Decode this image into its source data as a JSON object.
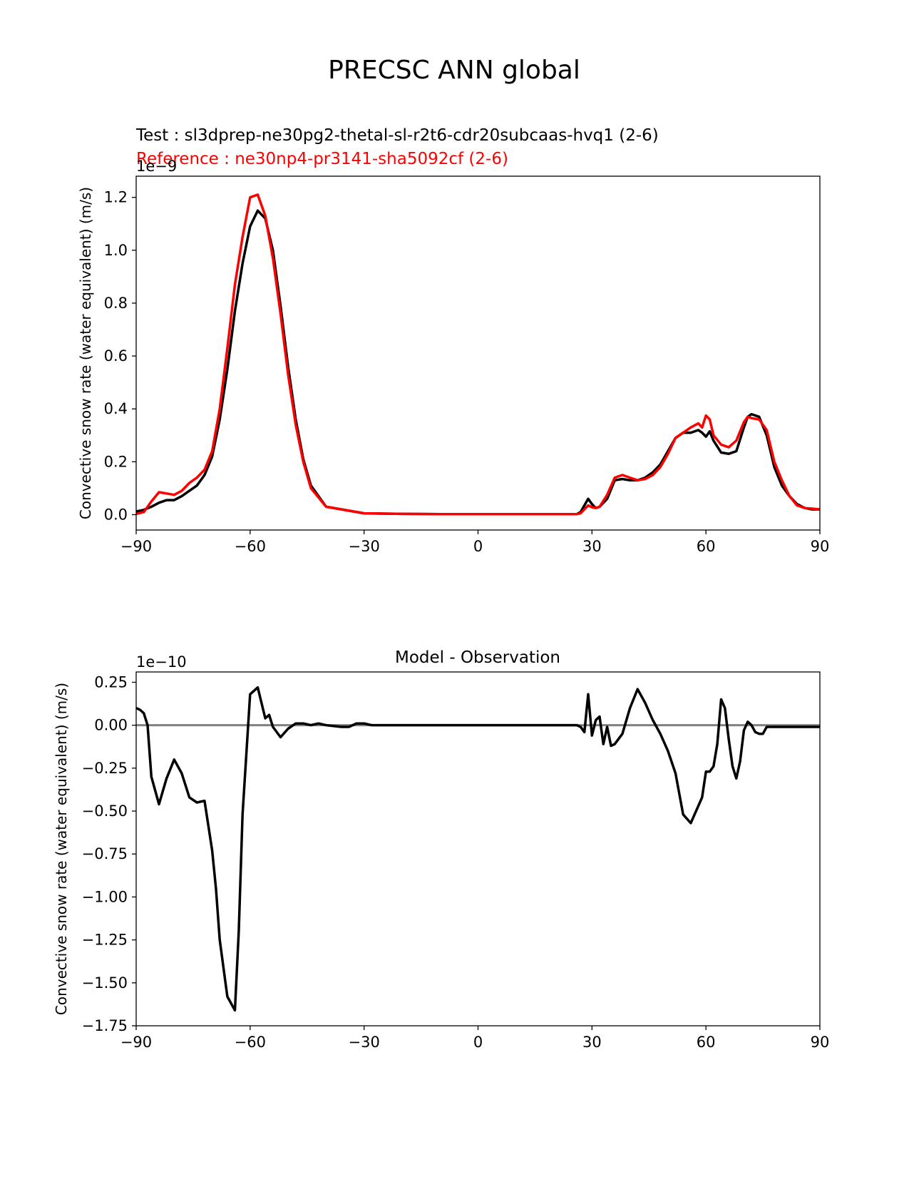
{
  "figure": {
    "suptitle": "PRECSC ANN global"
  },
  "chart_data": [
    {
      "type": "line",
      "title_test": "Test : sl3dprep-ne30pg2-thetal-sl-r2t6-cdr20subcaas-hvq1 (2-6)",
      "title_reference": "Reference : ne30np4-pr3141-sha5092cf (2-6)",
      "xlabel": "",
      "ylabel": "Convective snow rate (water equivalent) (m/s)",
      "y_offset_label": "1e−9",
      "y_scale": 1e-09,
      "xlim": [
        -90,
        90
      ],
      "ylim": [
        -0.058,
        1.28
      ],
      "xticks": [
        -90,
        -60,
        -30,
        0,
        30,
        60,
        90
      ],
      "xtick_labels": [
        "−90",
        "−60",
        "−30",
        "0",
        "30",
        "60",
        "90"
      ],
      "yticks": [
        0.0,
        0.2,
        0.4,
        0.6,
        0.8,
        1.0,
        1.2
      ],
      "ytick_labels": [
        "0.0",
        "0.2",
        "0.4",
        "0.6",
        "0.8",
        "1.0",
        "1.2"
      ],
      "series": [
        {
          "color": "#000000",
          "x": [
            -90,
            -88,
            -86,
            -84,
            -82,
            -80,
            -78,
            -76,
            -74,
            -72,
            -70,
            -68,
            -66,
            -64,
            -62,
            -60,
            -58,
            -56,
            -54,
            -52,
            -50,
            -48,
            -46,
            -44,
            -40,
            -30,
            -20,
            -10,
            0,
            10,
            20,
            26,
            27,
            29,
            30,
            31,
            32,
            34,
            36,
            38,
            40,
            42,
            44,
            46,
            48,
            50,
            52,
            54,
            56,
            58,
            59,
            60,
            61,
            62,
            64,
            66,
            68,
            70,
            71,
            72,
            74,
            76,
            78,
            80,
            82,
            84,
            86,
            88,
            90
          ],
          "y": [
            0.012,
            0.018,
            0.03,
            0.045,
            0.055,
            0.055,
            0.07,
            0.09,
            0.11,
            0.15,
            0.22,
            0.36,
            0.55,
            0.77,
            0.95,
            1.09,
            1.15,
            1.12,
            1.0,
            0.79,
            0.56,
            0.36,
            0.21,
            0.11,
            0.03,
            0.005,
            0.003,
            0.002,
            0.002,
            0.002,
            0.002,
            0.002,
            0.01,
            0.06,
            0.04,
            0.025,
            0.03,
            0.06,
            0.13,
            0.135,
            0.13,
            0.13,
            0.14,
            0.16,
            0.19,
            0.24,
            0.29,
            0.31,
            0.31,
            0.32,
            0.31,
            0.295,
            0.315,
            0.28,
            0.235,
            0.23,
            0.24,
            0.33,
            0.37,
            0.38,
            0.37,
            0.3,
            0.18,
            0.11,
            0.07,
            0.04,
            0.025,
            0.02,
            0.02
          ]
        },
        {
          "color": "#ff0000",
          "x": [
            -90,
            -88,
            -86,
            -84,
            -82,
            -80,
            -78,
            -76,
            -74,
            -72,
            -70,
            -68,
            -66,
            -64,
            -62,
            -60,
            -58,
            -56,
            -54,
            -52,
            -50,
            -48,
            -46,
            -44,
            -40,
            -30,
            -20,
            -10,
            0,
            10,
            20,
            26,
            27,
            29,
            30,
            31,
            32,
            34,
            36,
            38,
            40,
            42,
            44,
            46,
            48,
            50,
            52,
            54,
            56,
            58,
            59,
            60,
            61,
            62,
            64,
            66,
            68,
            70,
            71,
            72,
            74,
            76,
            78,
            80,
            82,
            84,
            86,
            88,
            90
          ],
          "y": [
            0.003,
            0.01,
            0.05,
            0.085,
            0.08,
            0.075,
            0.09,
            0.12,
            0.14,
            0.17,
            0.24,
            0.4,
            0.63,
            0.87,
            1.05,
            1.2,
            1.21,
            1.13,
            0.97,
            0.76,
            0.53,
            0.34,
            0.2,
            0.1,
            0.03,
            0.005,
            0.003,
            0.002,
            0.002,
            0.002,
            0.002,
            0.002,
            0.005,
            0.035,
            0.028,
            0.025,
            0.03,
            0.075,
            0.14,
            0.15,
            0.14,
            0.13,
            0.135,
            0.15,
            0.18,
            0.23,
            0.29,
            0.31,
            0.33,
            0.345,
            0.33,
            0.375,
            0.36,
            0.3,
            0.265,
            0.255,
            0.28,
            0.35,
            0.37,
            0.365,
            0.36,
            0.32,
            0.2,
            0.13,
            0.07,
            0.035,
            0.025,
            0.023,
            0.02
          ]
        }
      ]
    },
    {
      "type": "line",
      "title": "Model - Observation",
      "xlabel": "",
      "ylabel": "Convective snow rate (water equivalent) (m/s)",
      "y_offset_label": "1e−10",
      "y_scale": 1e-10,
      "xlim": [
        -90,
        90
      ],
      "ylim": [
        -1.75,
        0.31
      ],
      "xticks": [
        -90,
        -60,
        -30,
        0,
        30,
        60,
        90
      ],
      "xtick_labels": [
        "−90",
        "−60",
        "−30",
        "0",
        "30",
        "60",
        "90"
      ],
      "yticks": [
        0.25,
        0.0,
        -0.25,
        -0.5,
        -0.75,
        -1.0,
        -1.25,
        -1.5,
        -1.75
      ],
      "ytick_labels": [
        "0.25",
        "0.00",
        "−0.25",
        "−0.50",
        "−0.75",
        "−1.00",
        "−1.25",
        "−1.50",
        "−1.75"
      ],
      "zero_line": {
        "y": 0.0,
        "color": "#808080"
      },
      "series": [
        {
          "color": "#000000",
          "x": [
            -90,
            -89,
            -88,
            -87,
            -86,
            -84,
            -82,
            -80,
            -78,
            -76,
            -74,
            -72,
            -70,
            -69,
            -68,
            -66,
            -64,
            -63,
            -62,
            -60,
            -58,
            -56,
            -55,
            -54,
            -52,
            -50,
            -48,
            -46,
            -44,
            -42,
            -40,
            -36,
            -34,
            -32,
            -30,
            -28,
            -24,
            -20,
            -10,
            0,
            10,
            20,
            26,
            27,
            28,
            29,
            30,
            31,
            32,
            33,
            34,
            35,
            36,
            38,
            40,
            42,
            44,
            46,
            48,
            50,
            52,
            54,
            56,
            58,
            59,
            60,
            61,
            62,
            63,
            64,
            65,
            66,
            67,
            68,
            69,
            70,
            71,
            72,
            73,
            74,
            75,
            76,
            77,
            78,
            79,
            80,
            81,
            82,
            84,
            86,
            88,
            90
          ],
          "y": [
            0.1,
            0.09,
            0.07,
            0.0,
            -0.3,
            -0.46,
            -0.31,
            -0.2,
            -0.28,
            -0.42,
            -0.45,
            -0.44,
            -0.73,
            -0.95,
            -1.25,
            -1.58,
            -1.66,
            -1.2,
            -0.52,
            0.18,
            0.22,
            0.04,
            0.06,
            -0.01,
            -0.07,
            -0.02,
            0.01,
            0.01,
            0.0,
            0.01,
            0.0,
            -0.01,
            -0.01,
            0.01,
            0.01,
            0.0,
            0.0,
            0.0,
            0.0,
            0.0,
            0.0,
            0.0,
            0.0,
            -0.01,
            -0.04,
            0.18,
            -0.06,
            0.03,
            0.05,
            -0.11,
            -0.01,
            -0.12,
            -0.11,
            -0.05,
            0.1,
            0.21,
            0.13,
            0.03,
            -0.05,
            -0.15,
            -0.28,
            -0.52,
            -0.57,
            -0.47,
            -0.42,
            -0.27,
            -0.27,
            -0.24,
            -0.11,
            0.15,
            0.1,
            -0.08,
            -0.24,
            -0.31,
            -0.21,
            -0.03,
            0.02,
            0.0,
            -0.04,
            -0.05,
            -0.05,
            -0.01,
            -0.01,
            -0.01,
            -0.01,
            -0.01,
            -0.01,
            -0.01,
            -0.01,
            -0.01,
            -0.01,
            -0.01
          ]
        }
      ]
    }
  ]
}
